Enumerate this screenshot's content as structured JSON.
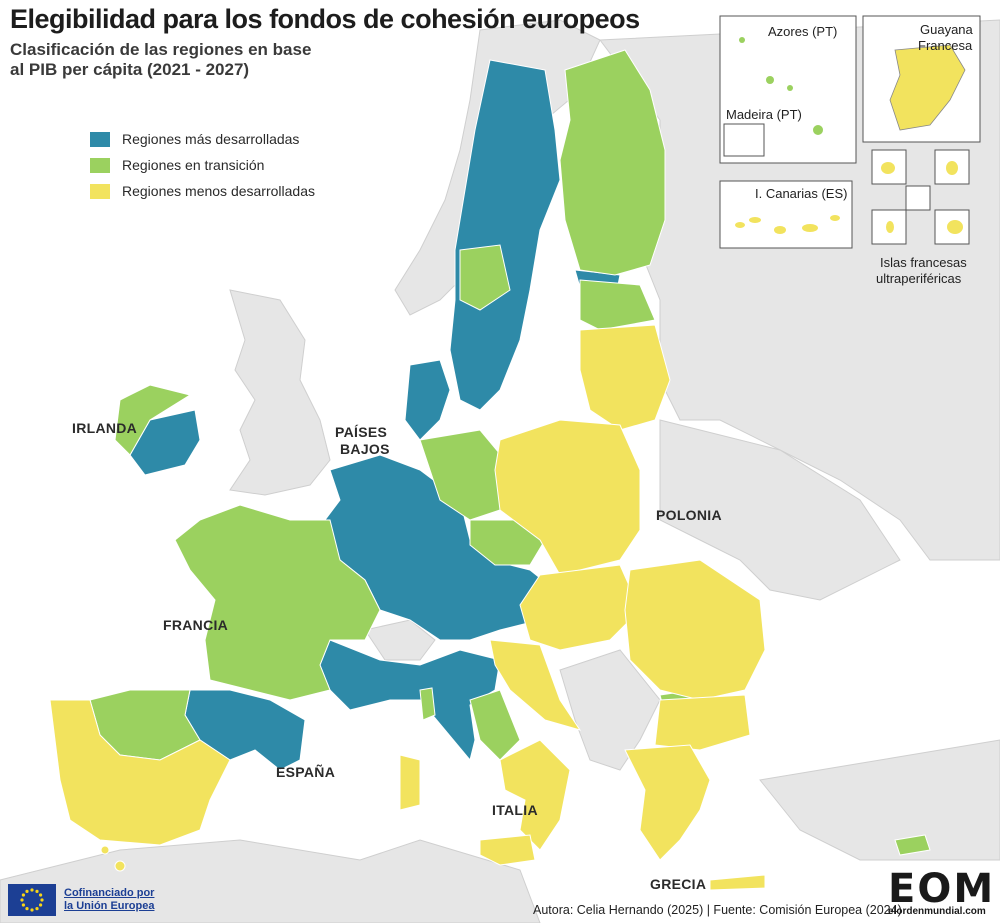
{
  "title": "Elegibilidad para los fondos de cohesión europeos",
  "subtitle": "Clasificación de las regiones en base al PIB per cápita (2021 - 2027)",
  "legend": [
    {
      "label": "Regiones más desarrolladas",
      "color": "#2e8aa8"
    },
    {
      "label": "Regiones en transición",
      "color": "#9bd15f"
    },
    {
      "label": "Regiones menos desarrolladas",
      "color": "#f2e35e"
    }
  ],
  "colors": {
    "non_eu_land": "#e6e6e6",
    "sea": "#ffffff",
    "border": "#ffffff"
  },
  "country_labels": {
    "irlanda": "IRLANDA",
    "paises_bajos_1": "PAÍSES",
    "paises_bajos_2": "BAJOS",
    "francia": "FRANCIA",
    "polonia": "POLONIA",
    "espana": "ESPAÑA",
    "italia": "ITALIA",
    "grecia": "GRECIA"
  },
  "insets": {
    "azores": "Azores (PT)",
    "madeira": "Madeira (PT)",
    "canarias": "I. Canarias (ES)",
    "guayana_1": "Guayana",
    "guayana_2": "Francesa",
    "islas_francesas_1": "Islas francesas",
    "islas_francesas_2": "ultraperiféricas"
  },
  "footer": {
    "credit": "Autora: Celia Hernando (2025) | Fuente: Comisión Europea (2024)",
    "eu_line1": "Cofinanciado por",
    "eu_line2": "la Unión Europea",
    "logo": "EOM",
    "site": "elordenmundial.com"
  }
}
